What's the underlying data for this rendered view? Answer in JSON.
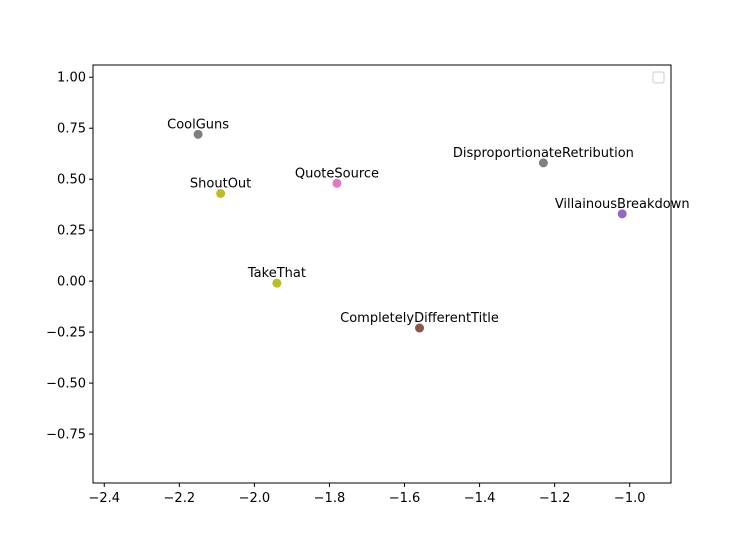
{
  "chart_data": {
    "type": "scatter",
    "title": "",
    "xlabel": "",
    "ylabel": "",
    "xlim": [
      -2.43,
      -0.89
    ],
    "ylim": [
      -0.99,
      1.06
    ],
    "xticks": [
      -2.4,
      -2.2,
      -2.0,
      -1.8,
      -1.6,
      -1.4,
      -1.2,
      -1.0
    ],
    "xtick_labels": [
      "−2.4",
      "−2.2",
      "−2.0",
      "−1.8",
      "−1.6",
      "−1.4",
      "−1.2",
      "−1.0"
    ],
    "yticks": [
      1.0,
      0.75,
      0.5,
      0.25,
      0.0,
      -0.25,
      -0.5,
      -0.75
    ],
    "ytick_labels": [
      "1.00",
      "0.75",
      "0.50",
      "0.25",
      "0.00",
      "−0.25",
      "−0.50",
      "−0.75"
    ],
    "grid": false,
    "legend": {
      "placement": "top-right",
      "entries": []
    },
    "points": [
      {
        "label": "CoolGuns",
        "x": -2.15,
        "y": 0.72,
        "color": "#7f7f7f"
      },
      {
        "label": "DisproportionateRetribution",
        "x": -1.23,
        "y": 0.58,
        "color": "#7f7f7f"
      },
      {
        "label": "QuoteSource",
        "x": -1.78,
        "y": 0.48,
        "color": "#e377c2"
      },
      {
        "label": "ShoutOut",
        "x": -2.09,
        "y": 0.43,
        "color": "#bcbd22"
      },
      {
        "label": "VillainousBreakdown",
        "x": -1.02,
        "y": 0.33,
        "color": "#9467bd"
      },
      {
        "label": "TakeThat",
        "x": -1.94,
        "y": -0.01,
        "color": "#bcbd22"
      },
      {
        "label": "CompletelyDifferentTitle",
        "x": -1.56,
        "y": -0.23,
        "color": "#8c564b"
      }
    ]
  }
}
